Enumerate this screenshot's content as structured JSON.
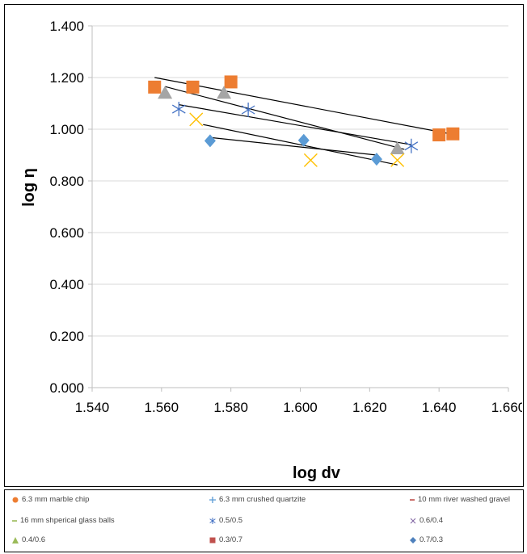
{
  "chart_data": {
    "type": "scatter",
    "xlabel": "log dv",
    "ylabel": "log η",
    "xlim": [
      1.54,
      1.66
    ],
    "ylim": [
      0.0,
      1.4
    ],
    "x_ticks": [
      1.54,
      1.56,
      1.58,
      1.6,
      1.62,
      1.64,
      1.66
    ],
    "y_ticks": [
      0.0,
      0.2,
      0.4,
      0.6,
      0.8,
      1.0,
      1.2,
      1.4
    ],
    "x_tick_labels": [
      "1.540",
      "1.560",
      "1.580",
      "1.600",
      "1.620",
      "1.640",
      "1.660"
    ],
    "y_tick_labels": [
      "0.000",
      "0.200",
      "0.400",
      "0.600",
      "0.800",
      "1.000",
      "1.200",
      "1.400"
    ],
    "grid": "horizontal",
    "legend_position": "bottom",
    "series": [
      {
        "name": "0.3/0.7",
        "marker": "square",
        "color": "#ED7D31",
        "points": [
          [
            1.558,
            1.163
          ],
          [
            1.569,
            1.163
          ],
          [
            1.58,
            1.183
          ],
          [
            1.64,
            0.978
          ],
          [
            1.644,
            0.982
          ]
        ]
      },
      {
        "name": "0.4/0.6",
        "marker": "triangle",
        "color": "#A5A5A5",
        "points": [
          [
            1.561,
            1.14
          ],
          [
            1.578,
            1.14
          ],
          [
            1.628,
            0.925
          ]
        ]
      },
      {
        "name": "0.5/0.5",
        "marker": "asterisk",
        "color": "#4472C4",
        "points": [
          [
            1.565,
            1.078
          ],
          [
            1.585,
            1.075
          ],
          [
            1.632,
            0.935
          ]
        ]
      },
      {
        "name": "0.6/0.4",
        "marker": "x",
        "color": "#FFC000",
        "points": [
          [
            1.57,
            1.038
          ],
          [
            1.603,
            0.88
          ],
          [
            1.628,
            0.88
          ]
        ]
      },
      {
        "name": "0.7/0.3",
        "marker": "diamond",
        "color": "#5B9BD5",
        "points": [
          [
            1.574,
            0.955
          ],
          [
            1.601,
            0.957
          ],
          [
            1.622,
            0.884
          ]
        ]
      }
    ],
    "trendlines": [
      {
        "color": "#000000",
        "points": [
          [
            1.558,
            1.2
          ],
          [
            1.644,
            0.98
          ]
        ]
      },
      {
        "color": "#000000",
        "points": [
          [
            1.561,
            1.165
          ],
          [
            1.63,
            0.922
          ]
        ]
      },
      {
        "color": "#000000",
        "points": [
          [
            1.565,
            1.095
          ],
          [
            1.632,
            0.94
          ]
        ]
      },
      {
        "color": "#000000",
        "points": [
          [
            1.572,
            1.018
          ],
          [
            1.628,
            0.862
          ]
        ]
      },
      {
        "color": "#000000",
        "points": [
          [
            1.574,
            0.968
          ],
          [
            1.622,
            0.9
          ]
        ]
      }
    ]
  },
  "legend": [
    {
      "label": "6.3 mm marble chip",
      "symbol": "circle",
      "color": "#ED7D31"
    },
    {
      "label": "6.3 mm crushed quartzite",
      "symbol": "plus",
      "color": "#5B9BD5"
    },
    {
      "label": "10 mm river washed gravel",
      "symbol": "dash",
      "color": "#C0504D"
    },
    {
      "label": "16 mm shperical glass balls",
      "symbol": "dash",
      "color": "#9BBB59"
    },
    {
      "label": "0.5/0.5",
      "symbol": "asterisk",
      "color": "#4472C4"
    },
    {
      "label": "0.6/0.4",
      "symbol": "x",
      "color": "#8064A2"
    },
    {
      "label": "0.4/0.6",
      "symbol": "triangle",
      "color": "#9BBB59"
    },
    {
      "label": "0.3/0.7",
      "symbol": "square",
      "color": "#C0504D"
    },
    {
      "label": "0.7/0.3",
      "symbol": "diamond",
      "color": "#4F81BD"
    }
  ]
}
